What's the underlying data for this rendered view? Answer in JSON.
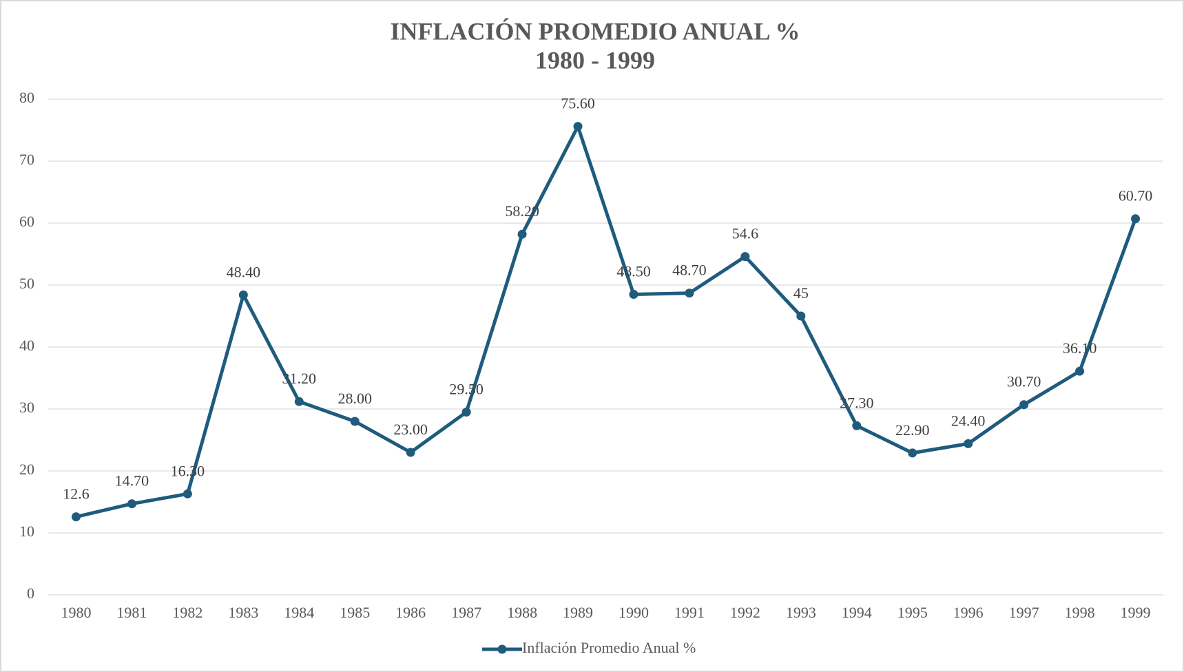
{
  "chart_data": {
    "type": "line",
    "title": "INFLACIÓN PROMEDIO ANUAL %",
    "subtitle": "1980 - 1999",
    "categories": [
      "1980",
      "1981",
      "1982",
      "1983",
      "1984",
      "1985",
      "1986",
      "1987",
      "1988",
      "1989",
      "1990",
      "1991",
      "1992",
      "1993",
      "1994",
      "1995",
      "1996",
      "1997",
      "1998",
      "1999"
    ],
    "series": [
      {
        "name": "Inflación Promedio Anual %",
        "color": "#1f5b7d",
        "values": [
          12.6,
          14.7,
          16.3,
          48.4,
          31.2,
          28.0,
          23.0,
          29.5,
          58.2,
          75.6,
          48.5,
          48.7,
          54.6,
          45,
          27.3,
          22.9,
          24.4,
          30.7,
          36.1,
          60.7
        ],
        "value_labels": [
          "12.6",
          "14.70",
          "16.30",
          "48.40",
          "31.20",
          "28.00",
          "23.00",
          "29.50",
          "58.20",
          "75.60",
          "48.50",
          "48.70",
          "54.6",
          "45",
          "27.30",
          "22.90",
          "24.40",
          "30.70",
          "36.10",
          "60.70"
        ]
      }
    ],
    "ylim": [
      0,
      80
    ],
    "yticks": [
      0,
      10,
      20,
      30,
      40,
      50,
      60,
      70,
      80
    ],
    "grid": true,
    "legend": "bottom"
  }
}
